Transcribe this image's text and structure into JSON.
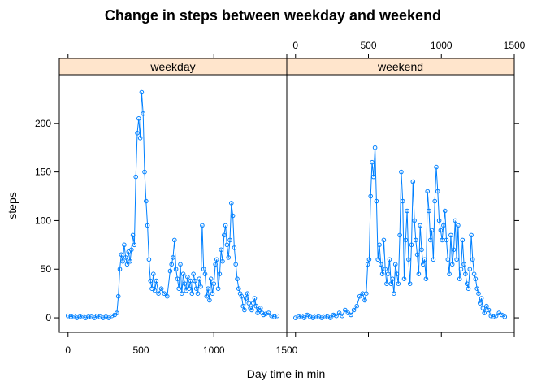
{
  "chart_data": {
    "type": "line",
    "title": "Change in steps between weekday and weekend",
    "xlabel": "Day time in min",
    "ylabel": "steps",
    "xlim": [
      -60,
      1500
    ],
    "ylim": [
      -15,
      250
    ],
    "x_ticks": [
      0,
      500,
      1000,
      1500
    ],
    "y_ticks": [
      0,
      50,
      100,
      150,
      200
    ],
    "grid": false,
    "legend": "none",
    "colors": {
      "series": "#0080FF",
      "strip": "#FFE5CC",
      "frame": "#000000"
    },
    "panels": [
      {
        "label": "weekday",
        "x_tick_labels_position": "bottom",
        "x": [
          0,
          20,
          40,
          60,
          80,
          100,
          120,
          140,
          160,
          180,
          200,
          220,
          240,
          260,
          280,
          300,
          320,
          335,
          345,
          355,
          365,
          375,
          385,
          395,
          405,
          415,
          425,
          435,
          445,
          455,
          465,
          475,
          485,
          495,
          505,
          515,
          525,
          535,
          545,
          555,
          565,
          575,
          585,
          595,
          605,
          620,
          640,
          660,
          680,
          700,
          710,
          720,
          730,
          740,
          750,
          760,
          770,
          780,
          790,
          800,
          810,
          820,
          830,
          840,
          850,
          860,
          870,
          880,
          890,
          900,
          910,
          920,
          930,
          940,
          950,
          960,
          970,
          980,
          990,
          1000,
          1010,
          1020,
          1030,
          1040,
          1050,
          1060,
          1070,
          1080,
          1090,
          1100,
          1110,
          1120,
          1130,
          1140,
          1150,
          1160,
          1170,
          1180,
          1190,
          1200,
          1210,
          1220,
          1230,
          1240,
          1250,
          1260,
          1270,
          1280,
          1290,
          1300,
          1310,
          1320,
          1330,
          1340,
          1355,
          1375,
          1395,
          1415,
          1435
        ],
        "values": [
          2,
          1,
          2,
          0,
          1,
          2,
          0,
          1,
          1,
          0,
          2,
          1,
          0,
          1,
          0,
          2,
          3,
          5,
          22,
          50,
          65,
          58,
          75,
          62,
          55,
          68,
          58,
          70,
          85,
          75,
          145,
          190,
          205,
          185,
          232,
          210,
          150,
          120,
          95,
          60,
          38,
          30,
          45,
          28,
          38,
          25,
          30,
          25,
          22,
          48,
          55,
          62,
          80,
          50,
          40,
          30,
          55,
          25,
          45,
          35,
          28,
          42,
          30,
          38,
          25,
          45,
          38,
          30,
          25,
          40,
          32,
          95,
          50,
          45,
          22,
          30,
          18,
          40,
          25,
          35,
          55,
          60,
          30,
          45,
          70,
          58,
          85,
          95,
          75,
          62,
          80,
          118,
          105,
          72,
          55,
          40,
          30,
          25,
          22,
          12,
          8,
          20,
          25,
          15,
          10,
          8,
          15,
          20,
          12,
          5,
          8,
          10,
          5,
          3,
          4,
          5,
          2,
          1,
          2
        ]
      },
      {
        "label": "weekend",
        "x_tick_labels_position": "top",
        "x": [
          0,
          20,
          40,
          60,
          80,
          100,
          120,
          140,
          160,
          180,
          200,
          220,
          240,
          260,
          280,
          300,
          320,
          340,
          360,
          380,
          400,
          420,
          440,
          460,
          475,
          485,
          495,
          505,
          515,
          525,
          535,
          545,
          555,
          565,
          575,
          585,
          595,
          605,
          615,
          625,
          635,
          645,
          655,
          665,
          675,
          685,
          695,
          705,
          715,
          725,
          735,
          745,
          755,
          765,
          775,
          785,
          795,
          805,
          815,
          825,
          835,
          845,
          855,
          865,
          875,
          885,
          895,
          905,
          915,
          925,
          935,
          945,
          955,
          965,
          975,
          985,
          995,
          1005,
          1015,
          1025,
          1035,
          1045,
          1055,
          1065,
          1075,
          1085,
          1095,
          1105,
          1115,
          1125,
          1135,
          1145,
          1155,
          1165,
          1175,
          1185,
          1195,
          1205,
          1215,
          1225,
          1235,
          1245,
          1255,
          1265,
          1275,
          1285,
          1295,
          1310,
          1325,
          1340,
          1355,
          1375,
          1395,
          1415,
          1435
        ],
        "values": [
          0,
          1,
          2,
          0,
          3,
          1,
          0,
          2,
          1,
          0,
          2,
          1,
          0,
          3,
          2,
          5,
          2,
          8,
          5,
          3,
          8,
          12,
          22,
          25,
          18,
          25,
          55,
          60,
          125,
          160,
          145,
          175,
          120,
          60,
          75,
          55,
          45,
          80,
          50,
          35,
          45,
          60,
          35,
          40,
          25,
          55,
          45,
          35,
          85,
          150,
          120,
          40,
          80,
          110,
          60,
          35,
          75,
          140,
          100,
          80,
          65,
          45,
          95,
          70,
          55,
          60,
          40,
          130,
          110,
          80,
          90,
          60,
          120,
          155,
          130,
          100,
          90,
          80,
          95,
          110,
          80,
          60,
          45,
          85,
          55,
          70,
          100,
          60,
          95,
          40,
          50,
          80,
          55,
          45,
          35,
          30,
          50,
          85,
          60,
          45,
          40,
          30,
          25,
          15,
          20,
          10,
          5,
          12,
          8,
          2,
          1,
          2,
          5,
          3,
          1
        ]
      }
    ]
  }
}
